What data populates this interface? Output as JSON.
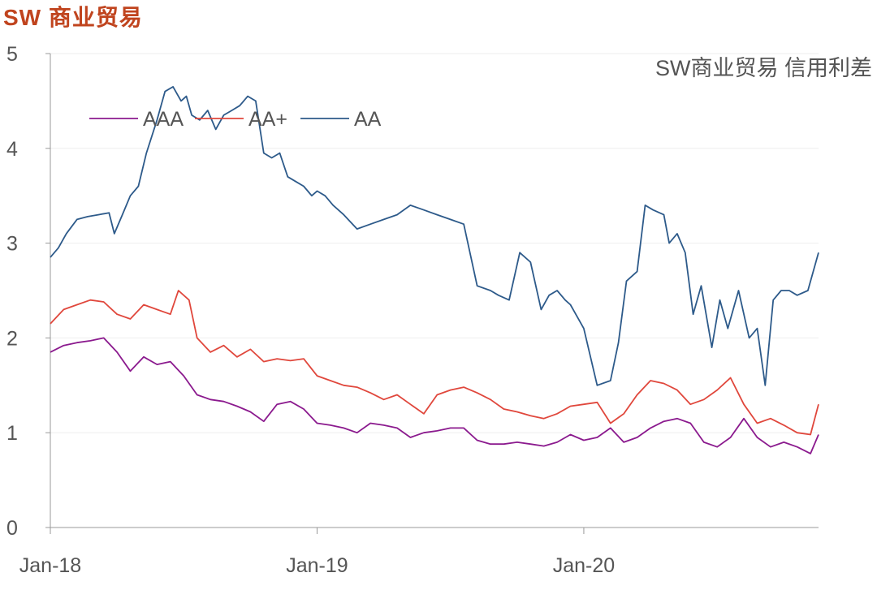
{
  "title": "SW 商业贸易",
  "chart_data": {
    "type": "line",
    "title": "SW商业贸易 信用利差",
    "xlabel": "",
    "ylabel": "",
    "ylim": [
      0,
      5
    ],
    "yticks": [
      0,
      1,
      2,
      3,
      4,
      5
    ],
    "xticks": [
      {
        "label": "Jan-18",
        "t": 0
      },
      {
        "label": "Jan-19",
        "t": 1
      },
      {
        "label": "Jan-20",
        "t": 2
      }
    ],
    "xlim": [
      0,
      2.88
    ],
    "legend_position": "top-left",
    "series": [
      {
        "name": "AAA",
        "color": "#8b1a8e",
        "x": [
          0.0,
          0.05,
          0.1,
          0.15,
          0.2,
          0.25,
          0.3,
          0.35,
          0.4,
          0.45,
          0.5,
          0.55,
          0.6,
          0.65,
          0.7,
          0.75,
          0.8,
          0.85,
          0.9,
          0.95,
          1.0,
          1.05,
          1.1,
          1.15,
          1.2,
          1.25,
          1.3,
          1.35,
          1.4,
          1.45,
          1.5,
          1.55,
          1.6,
          1.65,
          1.7,
          1.75,
          1.8,
          1.85,
          1.9,
          1.95,
          2.0,
          2.05,
          2.1,
          2.15,
          2.2,
          2.25,
          2.3,
          2.35,
          2.4,
          2.45,
          2.5,
          2.55,
          2.6,
          2.65,
          2.7,
          2.75,
          2.8,
          2.85,
          2.88
        ],
        "values": [
          1.85,
          1.92,
          1.95,
          1.97,
          2.0,
          1.85,
          1.65,
          1.8,
          1.72,
          1.75,
          1.6,
          1.4,
          1.35,
          1.33,
          1.28,
          1.22,
          1.12,
          1.3,
          1.33,
          1.25,
          1.1,
          1.08,
          1.05,
          1.0,
          1.1,
          1.08,
          1.05,
          0.95,
          1.0,
          1.02,
          1.05,
          1.05,
          0.92,
          0.88,
          0.88,
          0.9,
          0.88,
          0.86,
          0.9,
          0.98,
          0.92,
          0.95,
          1.05,
          0.9,
          0.95,
          1.05,
          1.12,
          1.15,
          1.1,
          0.9,
          0.85,
          0.95,
          1.15,
          0.95,
          0.85,
          0.9,
          0.85,
          0.78,
          0.98
        ]
      },
      {
        "name": "AA+",
        "color": "#e0473c",
        "x": [
          0.0,
          0.05,
          0.1,
          0.15,
          0.2,
          0.25,
          0.3,
          0.35,
          0.4,
          0.45,
          0.48,
          0.52,
          0.55,
          0.6,
          0.65,
          0.7,
          0.75,
          0.8,
          0.85,
          0.9,
          0.95,
          1.0,
          1.05,
          1.1,
          1.15,
          1.2,
          1.25,
          1.3,
          1.35,
          1.4,
          1.45,
          1.5,
          1.55,
          1.6,
          1.65,
          1.7,
          1.75,
          1.8,
          1.85,
          1.9,
          1.95,
          2.0,
          2.05,
          2.1,
          2.15,
          2.2,
          2.25,
          2.3,
          2.35,
          2.4,
          2.45,
          2.5,
          2.55,
          2.6,
          2.65,
          2.7,
          2.75,
          2.8,
          2.85,
          2.88
        ],
        "values": [
          2.15,
          2.3,
          2.35,
          2.4,
          2.38,
          2.25,
          2.2,
          2.35,
          2.3,
          2.25,
          2.5,
          2.4,
          2.0,
          1.85,
          1.92,
          1.8,
          1.88,
          1.75,
          1.78,
          1.76,
          1.78,
          1.6,
          1.55,
          1.5,
          1.48,
          1.42,
          1.35,
          1.4,
          1.3,
          1.2,
          1.4,
          1.45,
          1.48,
          1.42,
          1.35,
          1.25,
          1.22,
          1.18,
          1.15,
          1.2,
          1.28,
          1.3,
          1.32,
          1.1,
          1.2,
          1.4,
          1.55,
          1.52,
          1.45,
          1.3,
          1.35,
          1.45,
          1.58,
          1.3,
          1.1,
          1.15,
          1.08,
          1.0,
          0.98,
          1.3
        ]
      },
      {
        "name": "AA",
        "color": "#2d5a8a",
        "x": [
          0.0,
          0.03,
          0.06,
          0.1,
          0.14,
          0.18,
          0.22,
          0.24,
          0.27,
          0.3,
          0.33,
          0.36,
          0.4,
          0.43,
          0.46,
          0.49,
          0.51,
          0.53,
          0.56,
          0.59,
          0.62,
          0.65,
          0.68,
          0.71,
          0.74,
          0.77,
          0.8,
          0.83,
          0.86,
          0.89,
          0.92,
          0.95,
          0.98,
          1.0,
          1.03,
          1.06,
          1.1,
          1.15,
          1.2,
          1.25,
          1.3,
          1.35,
          1.4,
          1.45,
          1.5,
          1.55,
          1.6,
          1.65,
          1.68,
          1.72,
          1.76,
          1.8,
          1.84,
          1.87,
          1.9,
          1.93,
          1.95,
          2.0,
          2.05,
          2.1,
          2.13,
          2.16,
          2.2,
          2.23,
          2.26,
          2.3,
          2.32,
          2.35,
          2.38,
          2.41,
          2.44,
          2.48,
          2.51,
          2.54,
          2.58,
          2.62,
          2.65,
          2.68,
          2.71,
          2.74,
          2.77,
          2.8,
          2.84,
          2.88
        ],
        "values": [
          2.85,
          2.95,
          3.1,
          3.25,
          3.28,
          3.3,
          3.32,
          3.1,
          3.3,
          3.5,
          3.6,
          3.95,
          4.3,
          4.6,
          4.65,
          4.5,
          4.55,
          4.35,
          4.3,
          4.4,
          4.2,
          4.35,
          4.4,
          4.45,
          4.55,
          4.5,
          3.95,
          3.9,
          3.95,
          3.7,
          3.65,
          3.6,
          3.5,
          3.55,
          3.5,
          3.4,
          3.3,
          3.15,
          3.2,
          3.25,
          3.3,
          3.4,
          3.35,
          3.3,
          3.25,
          3.2,
          2.55,
          2.5,
          2.45,
          2.4,
          2.9,
          2.8,
          2.3,
          2.45,
          2.5,
          2.4,
          2.35,
          2.1,
          1.5,
          1.55,
          1.95,
          2.6,
          2.7,
          3.4,
          3.35,
          3.3,
          3.0,
          3.1,
          2.9,
          2.25,
          2.55,
          1.9,
          2.4,
          2.1,
          2.5,
          2.0,
          2.1,
          1.5,
          2.4,
          2.5,
          2.5,
          2.45,
          2.5,
          2.9
        ]
      }
    ]
  }
}
